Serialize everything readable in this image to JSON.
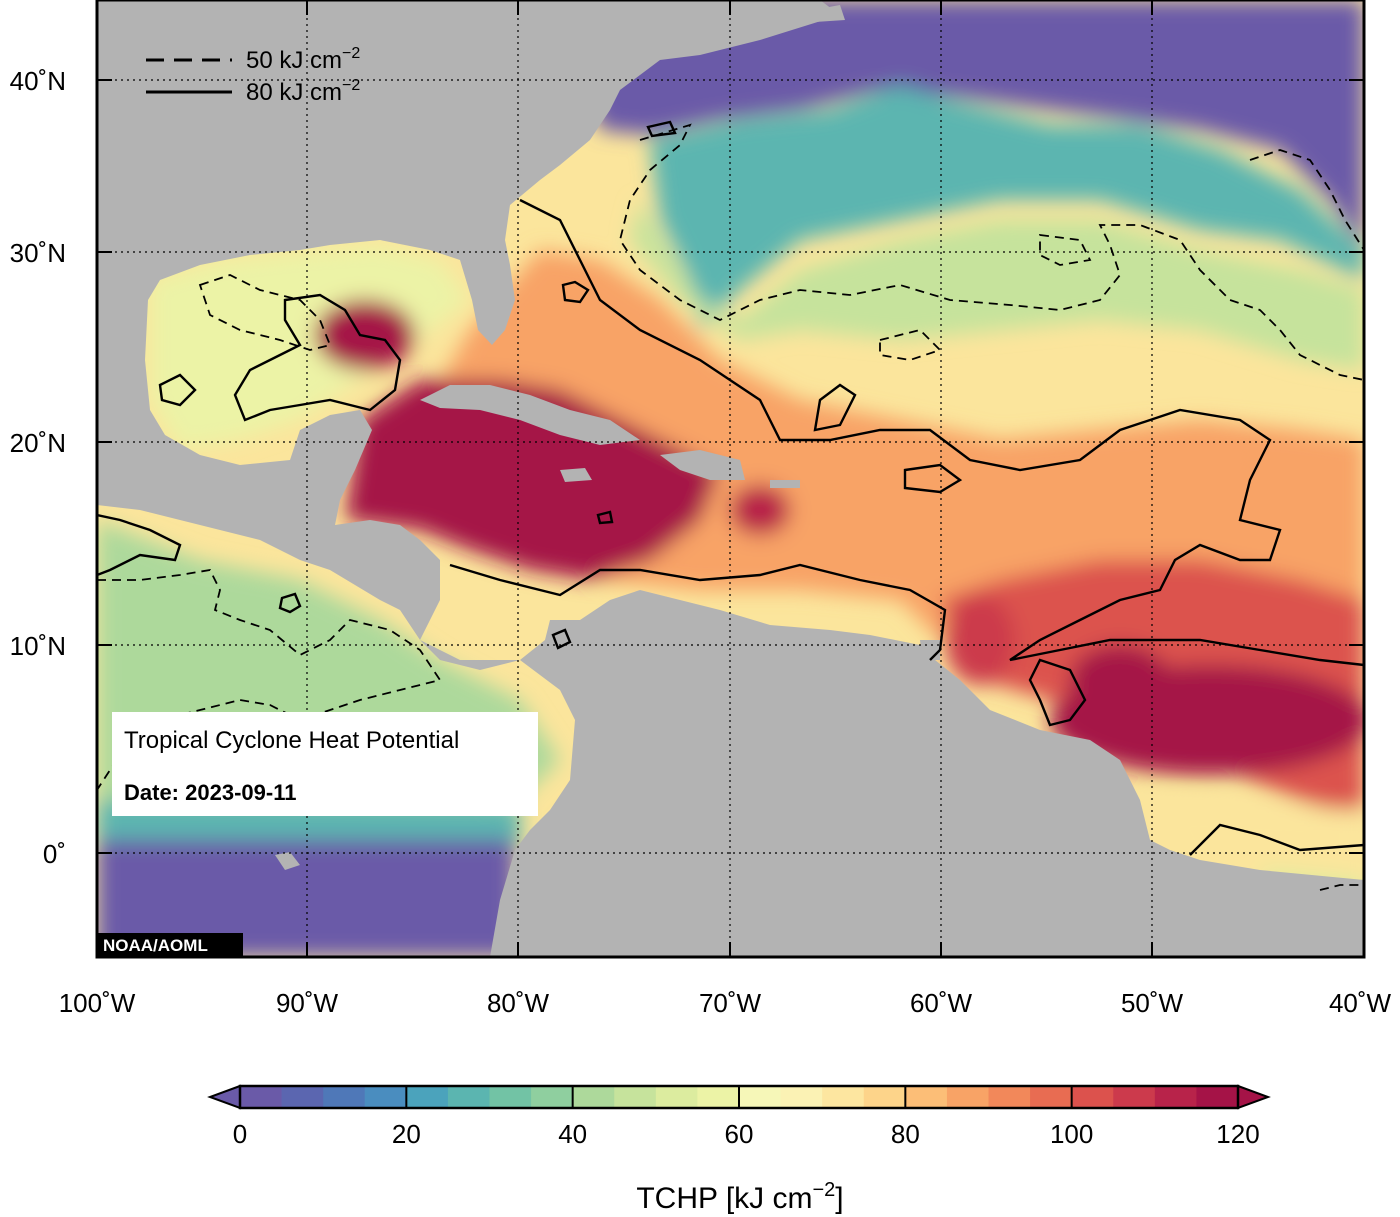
{
  "map": {
    "legend": [
      {
        "style": "dashed",
        "text": "50 kJ cm",
        "sup": "−2"
      },
      {
        "style": "solid",
        "text": "80 kJ cm",
        "sup": "−2"
      }
    ],
    "info_title": "Tropical Cyclone Heat Potential",
    "info_date": "Date: 2023-09-11",
    "credit": "NOAA/AOML",
    "lat_labels": [
      "40˚N",
      "30˚N",
      "20˚N",
      "10˚N",
      "0˚"
    ],
    "lon_labels": [
      "100˚W",
      "90˚W",
      "80˚W",
      "70˚W",
      "60˚W",
      "50˚W",
      "40˚W"
    ],
    "extent": {
      "lon": [
        -100,
        -40
      ],
      "lat": [
        -5,
        44
      ]
    }
  },
  "colorbar": {
    "ticks": [
      "0",
      "20",
      "40",
      "60",
      "80",
      "100",
      "120"
    ],
    "label": "TCHP [kJ cm",
    "label_sup": "−2",
    "label_close": "]",
    "range": [
      0,
      120
    ],
    "step": 5,
    "colors": [
      "#6a5aa8",
      "#5b66b0",
      "#4f78b8",
      "#4a8dbf",
      "#4ba3bc",
      "#5bb5b0",
      "#72c3a5",
      "#8fcf9f",
      "#add99b",
      "#c6e39c",
      "#dcec9f",
      "#ecf3a6",
      "#f6f7b8",
      "#fbf2b4",
      "#fde6a0",
      "#fdd48a",
      "#fcbe77",
      "#f8a366",
      "#f2885a",
      "#e86c52",
      "#dc524d",
      "#cc3a4c",
      "#b8234a",
      "#a51347"
    ],
    "under_color": "#6a5aa8",
    "over_color": "#a51347"
  }
}
